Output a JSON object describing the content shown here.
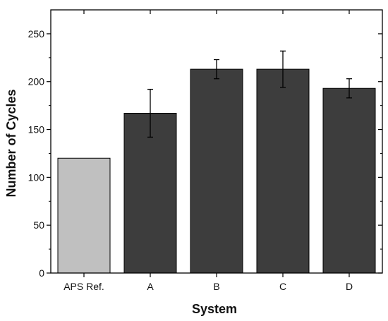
{
  "chart_data": {
    "type": "bar",
    "title": "",
    "xlabel": "System",
    "ylabel": "Number of Cycles",
    "categories": [
      "APS Ref.",
      "A",
      "B",
      "C",
      "D"
    ],
    "values": [
      120,
      167,
      213,
      213,
      193
    ],
    "error_bars": [
      null,
      25,
      10,
      19,
      10
    ],
    "ylim": [
      0,
      275
    ],
    "yticks": [
      0,
      50,
      100,
      150,
      200,
      250
    ],
    "yticks_labels": [
      "0",
      "50",
      "100",
      "150",
      "200",
      "250"
    ],
    "grid": false,
    "legend": "none",
    "colors": {
      "reference_bar": "#c0c0c0",
      "system_bar": "#3d3d3d",
      "axis": "#000000"
    }
  }
}
